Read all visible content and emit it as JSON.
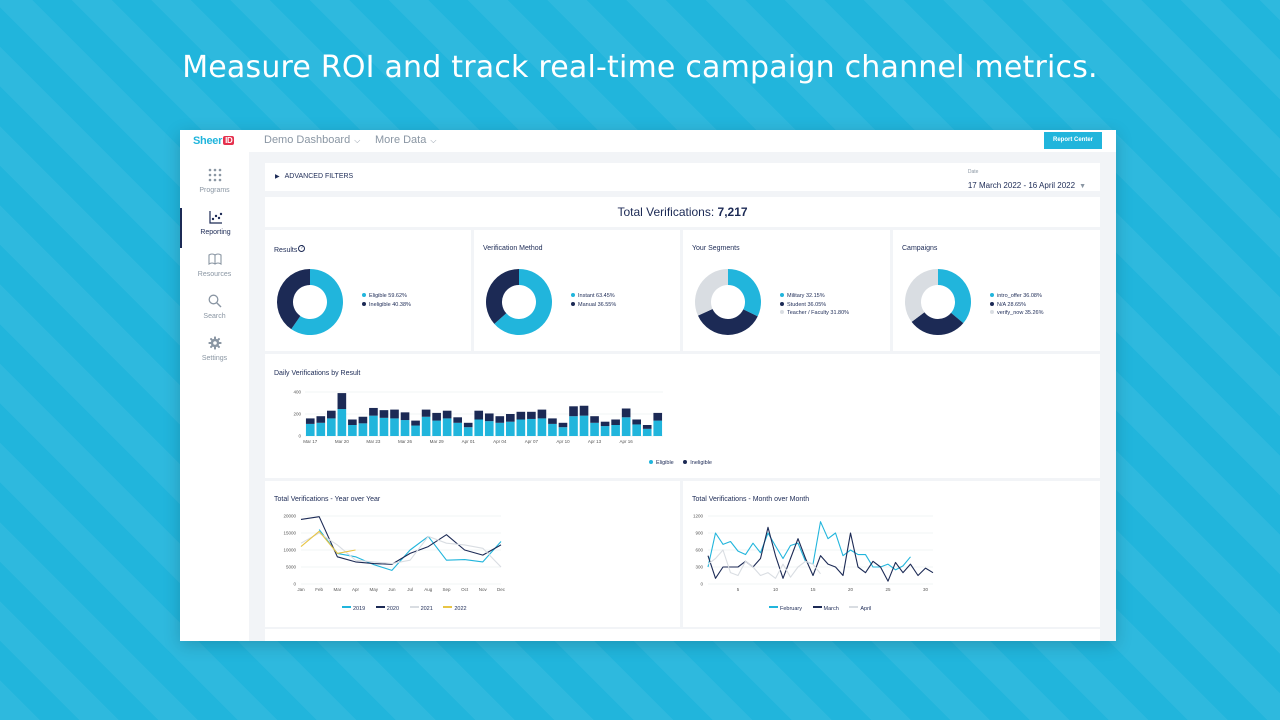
{
  "headline": "Measure ROI and track real-time campaign channel metrics.",
  "colors": {
    "background": "#21b5dc",
    "navy": "#1c2a55",
    "teal": "#21b5dc",
    "light_gray": "#d9dde2",
    "yellow": "#e8c545"
  },
  "sidebar": {
    "logo_text": "Sheer",
    "logo_mark": "ID",
    "items": [
      {
        "label": "Programs",
        "icon": "grid-icon"
      },
      {
        "label": "Reporting",
        "icon": "chart-icon",
        "active": true
      },
      {
        "label": "Resources",
        "icon": "book-icon"
      },
      {
        "label": "Search",
        "icon": "search-icon"
      },
      {
        "label": "Settings",
        "icon": "gear-icon"
      }
    ]
  },
  "topbar": {
    "menu1": "Demo Dashboard",
    "menu2": "More Data",
    "report_button": "Report Center"
  },
  "filters": {
    "toggle_label": "ADVANCED FILTERS",
    "date_label": "Date",
    "date_from": "17 March 2022",
    "date_sep": "-",
    "date_to": "16 April 2022"
  },
  "total": {
    "label": "Total Verifications:",
    "value": "7,217"
  },
  "donut_cards": [
    {
      "title": "Results",
      "help": "?",
      "slices": [
        {
          "label": "Eligible 59.62%",
          "value": 59.62,
          "color": "#21b5dc"
        },
        {
          "label": "Ineligible 40.38%",
          "value": 40.38,
          "color": "#1c2a55"
        }
      ]
    },
    {
      "title": "Verification Method",
      "slices": [
        {
          "label": "Instant 63.45%",
          "value": 63.45,
          "color": "#21b5dc"
        },
        {
          "label": "Manual 36.55%",
          "value": 36.55,
          "color": "#1c2a55"
        }
      ]
    },
    {
      "title": "Your Segments",
      "slices": [
        {
          "label": "Military 32.15%",
          "value": 32.15,
          "color": "#21b5dc"
        },
        {
          "label": "Student 36.05%",
          "value": 36.05,
          "color": "#1c2a55"
        },
        {
          "label": "Teacher / Faculty 31.80%",
          "value": 31.8,
          "color": "#d9dde2"
        }
      ]
    },
    {
      "title": "Campaigns",
      "slices": [
        {
          "label": "intro_offer 36.08%",
          "value": 36.08,
          "color": "#21b5dc"
        },
        {
          "label": "N/A 28.65%",
          "value": 28.65,
          "color": "#1c2a55"
        },
        {
          "label": "verify_now 35.26%",
          "value": 35.26,
          "color": "#d9dde2"
        }
      ]
    }
  ],
  "chart_data": [
    {
      "type": "bar",
      "title": "Daily Verifications by Result",
      "stacked": true,
      "ylim": [
        0,
        400
      ],
      "yticks": [
        0,
        200,
        400
      ],
      "xticks": [
        "Mar 17",
        "Mar 20",
        "Mar 23",
        "Mar 26",
        "Mar 29",
        "Apr 01",
        "Apr 04",
        "Apr 07",
        "Apr 10",
        "Apr 13",
        "Apr 16"
      ],
      "series": [
        {
          "name": "Eligible",
          "color": "#21b5dc",
          "values": [
            110,
            120,
            160,
            245,
            100,
            115,
            185,
            165,
            160,
            145,
            95,
            175,
            140,
            160,
            120,
            80,
            150,
            135,
            120,
            130,
            150,
            155,
            160,
            110,
            80,
            180,
            185,
            120,
            90,
            100,
            170,
            105,
            65,
            140
          ]
        },
        {
          "name": "Ineligible",
          "color": "#1c2a55",
          "values": [
            50,
            60,
            70,
            145,
            50,
            60,
            70,
            70,
            80,
            70,
            45,
            65,
            70,
            70,
            50,
            40,
            80,
            70,
            60,
            70,
            70,
            65,
            80,
            50,
            40,
            90,
            90,
            60,
            40,
            50,
            80,
            45,
            35,
            70
          ]
        }
      ]
    },
    {
      "type": "line",
      "title": "Total Verifications - Year over Year",
      "ylim": [
        0,
        20000
      ],
      "yticks": [
        0,
        5000,
        10000,
        15000,
        20000
      ],
      "categories": [
        "Jan",
        "Feb",
        "Mar",
        "Apr",
        "May",
        "Jun",
        "Jul",
        "Aug",
        "Sep",
        "Oct",
        "Nov",
        "Dec"
      ],
      "series": [
        {
          "name": "2019",
          "color": "#21b5dc",
          "values": [
            null,
            16000,
            9000,
            8000,
            5700,
            4000,
            10000,
            14000,
            7000,
            7200,
            6500,
            12500
          ]
        },
        {
          "name": "2020",
          "color": "#1c2a55",
          "values": [
            19000,
            19800,
            8000,
            6500,
            6000,
            5800,
            9000,
            11000,
            14500,
            10000,
            8500,
            11500
          ]
        },
        {
          "name": "2021",
          "color": "#d9dde2",
          "values": [
            12000,
            15000,
            11500,
            7000,
            6500,
            6000,
            7000,
            14000,
            12000,
            11500,
            10500,
            5000
          ]
        },
        {
          "name": "2022",
          "color": "#e8c545",
          "values": [
            11000,
            15500,
            9000,
            10000,
            null,
            null,
            null,
            null,
            null,
            null,
            null,
            null
          ]
        }
      ]
    },
    {
      "type": "line",
      "title": "Total Verifications - Month over Month",
      "ylim": [
        0,
        1200
      ],
      "yticks": [
        0,
        300,
        600,
        900,
        1200
      ],
      "xticks": [
        5,
        10,
        15,
        20,
        25,
        30
      ],
      "series": [
        {
          "name": "February",
          "color": "#21b5dc",
          "values": [
            300,
            900,
            700,
            750,
            580,
            520,
            720,
            550,
            900,
            670,
            450,
            680,
            720,
            400,
            350,
            1100,
            800,
            900,
            500,
            600,
            520,
            520,
            300,
            300,
            350,
            250,
            320,
            480
          ]
        },
        {
          "name": "March",
          "color": "#1c2a55",
          "values": [
            500,
            100,
            300,
            300,
            300,
            400,
            300,
            450,
            1000,
            500,
            100,
            450,
            800,
            450,
            150,
            500,
            350,
            300,
            150,
            900,
            300,
            200,
            400,
            300,
            50,
            380,
            200,
            350,
            150,
            280,
            200
          ]
        },
        {
          "name": "April",
          "color": "#d9dde2",
          "values": [
            350,
            450,
            600,
            200,
            150,
            400,
            300,
            150,
            200,
            100,
            350,
            120,
            300,
            400,
            350,
            180
          ]
        }
      ]
    }
  ]
}
